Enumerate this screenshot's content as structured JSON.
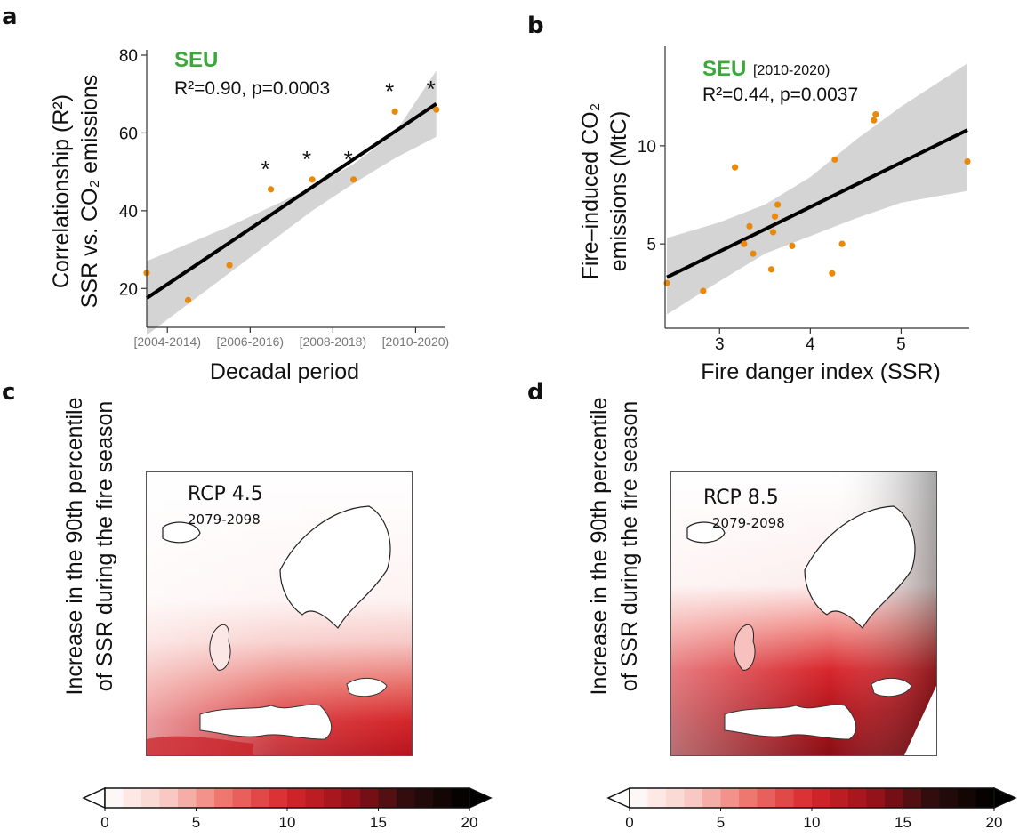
{
  "panels": {
    "a": "a",
    "b": "b",
    "c": "c",
    "d": "d"
  },
  "colors": {
    "point": "#e8890c",
    "line": "#000000",
    "band": "#d4d4d4",
    "seu": "#3aa83a"
  },
  "chart_data": [
    {
      "type": "scatter",
      "panel": "a",
      "region": "SEU",
      "stats": {
        "r2_label": "R²=0.90, p=0.0003"
      },
      "ylabel_line1": "Correlationship (R²)",
      "ylabel_line2": "SSR vs. CO₂ emissions",
      "xlabel": "Decadal period",
      "ylim": [
        10,
        80
      ],
      "xlim": [
        0,
        7.2
      ],
      "yticks": [
        20,
        40,
        60,
        80
      ],
      "xticks": [
        {
          "x": 0.5,
          "label": "[2004-2014)"
        },
        {
          "x": 2.5,
          "label": "[2006-2016)"
        },
        {
          "x": 4.5,
          "label": "[2008-2018)"
        },
        {
          "x": 6.5,
          "label": "[2010-2020)"
        }
      ],
      "points": [
        {
          "x": 0,
          "y": 24,
          "star": false
        },
        {
          "x": 1,
          "y": 17,
          "star": false
        },
        {
          "x": 2,
          "y": 26,
          "star": false
        },
        {
          "x": 3,
          "y": 45.5,
          "star": true
        },
        {
          "x": 4,
          "y": 48,
          "star": true
        },
        {
          "x": 5,
          "y": 48,
          "star": true
        },
        {
          "x": 6,
          "y": 65.5,
          "star": true
        },
        {
          "x": 7,
          "y": 66,
          "star": true
        }
      ],
      "star_symbol": "*",
      "fit": {
        "x0": 0,
        "y0": 17.5,
        "x1": 7,
        "y1": 67.5
      },
      "band_upper": [
        [
          0,
          27
        ],
        [
          1,
          31.5
        ],
        [
          2,
          36
        ],
        [
          3,
          41
        ],
        [
          4,
          46
        ],
        [
          5,
          52
        ],
        [
          6,
          60
        ],
        [
          7,
          76
        ]
      ],
      "band_lower": [
        [
          0,
          8
        ],
        [
          1,
          16
        ],
        [
          2,
          24
        ],
        [
          3,
          32
        ],
        [
          4,
          40
        ],
        [
          5,
          47
        ],
        [
          6,
          53.5
        ],
        [
          7,
          59
        ]
      ]
    },
    {
      "type": "scatter",
      "panel": "b",
      "region": "SEU",
      "period": "[2010-2020)",
      "stats": {
        "r2_label": "R²=0.44, p=0.0037"
      },
      "ylabel_line1": "Fire–induced CO₂",
      "ylabel_line2": "emissions (MtC)",
      "xlabel": "Fire danger index (SSR)",
      "xlim": [
        2.4,
        5.75
      ],
      "ylim": [
        0.7,
        14.8
      ],
      "xticks": [
        3,
        4,
        5
      ],
      "yticks": [
        5,
        10
      ],
      "points": [
        {
          "x": 2.42,
          "y": 3.0
        },
        {
          "x": 2.82,
          "y": 2.6
        },
        {
          "x": 3.17,
          "y": 8.9
        },
        {
          "x": 3.27,
          "y": 5.0
        },
        {
          "x": 3.33,
          "y": 5.9
        },
        {
          "x": 3.37,
          "y": 4.5
        },
        {
          "x": 3.57,
          "y": 3.7
        },
        {
          "x": 3.59,
          "y": 5.6
        },
        {
          "x": 3.61,
          "y": 6.4
        },
        {
          "x": 3.64,
          "y": 7.0
        },
        {
          "x": 3.8,
          "y": 4.9
        },
        {
          "x": 4.24,
          "y": 3.5
        },
        {
          "x": 4.27,
          "y": 9.3
        },
        {
          "x": 4.35,
          "y": 5.0
        },
        {
          "x": 4.7,
          "y": 11.3
        },
        {
          "x": 4.72,
          "y": 11.6
        },
        {
          "x": 5.73,
          "y": 9.2
        }
      ],
      "fit": {
        "x0": 2.42,
        "y0": 3.3,
        "x1": 5.73,
        "y1": 10.8
      },
      "band_upper": [
        [
          2.42,
          5.3
        ],
        [
          3.0,
          6.1
        ],
        [
          3.5,
          7.0
        ],
        [
          4.0,
          8.4
        ],
        [
          4.5,
          10.3
        ],
        [
          5.0,
          12.0
        ],
        [
          5.73,
          14.2
        ]
      ],
      "band_lower": [
        [
          2.42,
          1.4
        ],
        [
          3.0,
          3.1
        ],
        [
          3.5,
          4.5
        ],
        [
          4.0,
          5.4
        ],
        [
          4.5,
          6.3
        ],
        [
          5.0,
          7.1
        ],
        [
          5.73,
          7.7
        ]
      ]
    },
    {
      "type": "heatmap",
      "panel": "c",
      "scenario": "RCP 4.5",
      "years": "2079-2098",
      "ylabel_line1": "Increase in the 90th percentile",
      "ylabel_line2": "of SSR during the fire season",
      "colorbar": {
        "min": 0,
        "max": 20,
        "ticks": [
          "0",
          "5",
          "10",
          "15",
          "20"
        ]
      }
    },
    {
      "type": "heatmap",
      "panel": "d",
      "scenario": "RCP 8.5",
      "years": "2079-2098",
      "ylabel_line1": "Increase in the 90th percentile",
      "ylabel_line2": "of SSR during the fire season",
      "colorbar": {
        "min": 0,
        "max": 20,
        "ticks": [
          "0",
          "5",
          "10",
          "15",
          "20"
        ]
      }
    }
  ]
}
